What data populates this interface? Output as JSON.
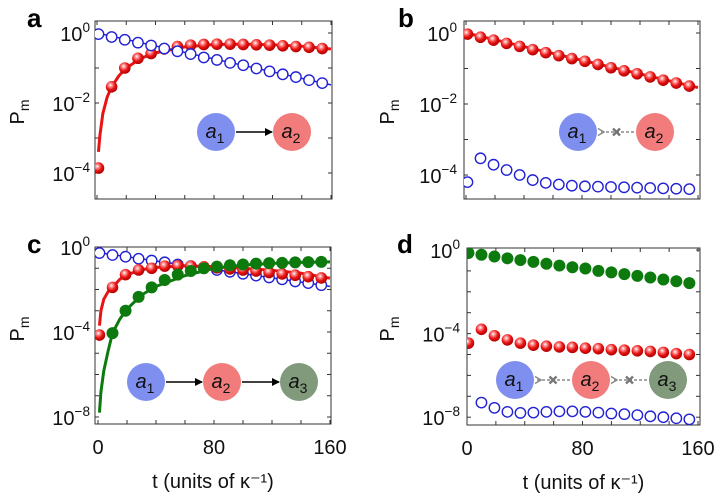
{
  "colors": {
    "red_marker": "#e81414",
    "blue_marker": "#2222d4",
    "green_marker": "#0c7a0c",
    "node_a1": "#7f8ff0",
    "node_a2": "#f27c7c",
    "node_a3": "#819a7c",
    "arrow_blocked": "#8a8a8a"
  },
  "chart_data": [
    {
      "panel": "a",
      "type": "scatter+line",
      "ylabel": "Pm",
      "yscale": "log",
      "ylim": [
        2e-05,
        2.3
      ],
      "xlim": [
        0,
        160
      ],
      "yticks": [
        "10^0",
        "10^-2",
        "10^-4"
      ],
      "xticks": [],
      "diagram": {
        "nodes": [
          "a1",
          "a2"
        ],
        "links": [
          {
            "from": "a1",
            "to": "a2",
            "style": "solid"
          }
        ]
      },
      "series": [
        {
          "color": "red",
          "marker": "sphere",
          "t": [
            1,
            10,
            19,
            28,
            37,
            46,
            55,
            64,
            73,
            82,
            91,
            100,
            109,
            118,
            127,
            136,
            145,
            154
          ],
          "values": [
            0.000138,
            0.029,
            0.1,
            0.19,
            0.26,
            0.35,
            0.41,
            0.45,
            0.47,
            0.48,
            0.48,
            0.47,
            0.46,
            0.45,
            0.43,
            0.41,
            0.39,
            0.36
          ],
          "line": {
            "t": [
              1,
              2,
              4,
              7,
              10,
              15,
              20,
              30,
              40,
              60,
              80,
              100,
              120,
              140,
              160
            ],
            "values": [
              0.0004,
              0.0012,
              0.005,
              0.015,
              0.029,
              0.06,
              0.1,
              0.19,
              0.27,
              0.4,
              0.47,
              0.48,
              0.46,
              0.42,
              0.35
            ]
          }
        },
        {
          "color": "blue",
          "marker": "open-circle",
          "t": [
            1,
            10,
            19,
            28,
            37,
            46,
            55,
            64,
            73,
            82,
            91,
            100,
            109,
            118,
            127,
            136,
            145,
            154
          ],
          "values": [
            0.93,
            0.77,
            0.64,
            0.53,
            0.44,
            0.36,
            0.3,
            0.25,
            0.2,
            0.17,
            0.14,
            0.12,
            0.097,
            0.08,
            0.066,
            0.055,
            0.045,
            0.037
          ],
          "line": {
            "t": [
              0,
              160
            ],
            "values": [
              1.0,
              0.033
            ]
          }
        }
      ]
    },
    {
      "panel": "b",
      "type": "scatter+line",
      "ylabel": "Pm",
      "yscale": "log",
      "ylim": [
        2e-05,
        2.3
      ],
      "xlim": [
        0,
        160
      ],
      "yticks": [
        "10^0",
        "10^-2",
        "10^-4"
      ],
      "xticks": [],
      "diagram": {
        "nodes": [
          "a1",
          "a2"
        ],
        "links": [
          {
            "from": "a2",
            "to": "a1",
            "style": "dashed-blocked"
          }
        ]
      },
      "series": [
        {
          "color": "red",
          "marker": "sphere",
          "t": [
            1,
            10,
            19,
            28,
            37,
            46,
            55,
            64,
            73,
            82,
            91,
            100,
            109,
            118,
            127,
            136,
            145,
            154
          ],
          "values": [
            0.93,
            0.76,
            0.63,
            0.51,
            0.42,
            0.34,
            0.28,
            0.23,
            0.19,
            0.16,
            0.13,
            0.105,
            0.086,
            0.071,
            0.058,
            0.047,
            0.039,
            0.032
          ],
          "line": {
            "t": [
              0,
              160
            ],
            "values": [
              1.0,
              0.029
            ]
          }
        },
        {
          "color": "blue",
          "marker": "open-circle",
          "t": [
            1,
            10,
            19,
            28,
            37,
            46,
            55,
            64,
            73,
            82,
            91,
            100,
            109,
            118,
            127,
            136,
            145,
            154
          ],
          "values": [
            6.3e-05,
            0.000295,
            0.000195,
            0.000138,
            0.0001,
            7.2e-05,
            6e-05,
            5.4e-05,
            5e-05,
            4.8e-05,
            4.7e-05,
            4.6e-05,
            4.5e-05,
            4.4e-05,
            4.3e-05,
            4.2e-05,
            4.1e-05,
            4e-05
          ]
        }
      ]
    },
    {
      "panel": "c",
      "type": "scatter+line",
      "ylabel": "Pm",
      "xlabel": "t (units of κ⁻¹)",
      "yscale": "log",
      "ylim": [
        5e-09,
        1
      ],
      "xlim": [
        0,
        160
      ],
      "yticks": [
        "10^0",
        "10^-4",
        "10^-8"
      ],
      "xticks": [
        "0",
        "80",
        "160"
      ],
      "diagram": {
        "nodes": [
          "a1",
          "a2",
          "a3"
        ],
        "links": [
          {
            "from": "a1",
            "to": "a2",
            "style": "solid"
          },
          {
            "from": "a2",
            "to": "a3",
            "style": "solid"
          }
        ]
      },
      "series": [
        {
          "color": "blue",
          "marker": "open-circle",
          "t": [
            1,
            10,
            19,
            28,
            37,
            46,
            55,
            64,
            73,
            82,
            91,
            100,
            109,
            118,
            127,
            136,
            145,
            154
          ],
          "values": [
            0.52,
            0.42,
            0.35,
            0.28,
            0.23,
            0.19,
            0.15,
            0.125,
            0.1,
            0.083,
            0.068,
            0.055,
            0.045,
            0.037,
            0.03,
            0.024,
            0.02,
            0.016
          ],
          "line": {
            "t": [
              0,
              160
            ],
            "values": [
              0.55,
              0.014
            ]
          }
        },
        {
          "color": "red",
          "marker": "sphere",
          "t": [
            1,
            10,
            19,
            28,
            37,
            46,
            55,
            64,
            73,
            82,
            91,
            100,
            109,
            118,
            127,
            136,
            145,
            154
          ],
          "values": [
            7.2e-05,
            0.0126,
            0.05,
            0.083,
            0.1,
            0.126,
            0.13,
            0.126,
            0.117,
            0.105,
            0.093,
            0.083,
            0.074,
            0.063,
            0.054,
            0.047,
            0.04,
            0.035
          ],
          "line": {
            "t": [
              1,
              2,
              4,
              7,
              10,
              15,
              20,
              30,
              40,
              60,
              80,
              100,
              120,
              140,
              160
            ],
            "values": [
              0.0002,
              0.001,
              0.0035,
              0.008,
              0.0126,
              0.03,
              0.05,
              0.085,
              0.11,
              0.13,
              0.12,
              0.1,
              0.08,
              0.058,
              0.034
            ]
          }
        },
        {
          "color": "green",
          "marker": "filled-circle",
          "t": [
            10,
            19,
            28,
            37,
            46,
            55,
            64,
            73,
            82,
            91,
            100,
            109,
            118,
            127,
            136,
            145,
            154
          ],
          "values": [
            8.9e-05,
            0.001,
            0.0045,
            0.0126,
            0.028,
            0.05,
            0.074,
            0.1,
            0.12,
            0.138,
            0.15,
            0.166,
            0.174,
            0.18,
            0.19,
            0.195,
            0.2
          ],
          "line": {
            "t": [
              1,
              2,
              4,
              7,
              10,
              15,
              20,
              30,
              40,
              60,
              80,
              100,
              120,
              140,
              160
            ],
            "values": [
              1.6e-08,
              1.5e-07,
              1.5e-06,
              1.3e-05,
              8.9e-05,
              0.0004,
              0.0012,
              0.0055,
              0.014,
              0.045,
              0.1,
              0.14,
              0.17,
              0.19,
              0.2
            ]
          }
        }
      ]
    },
    {
      "panel": "d",
      "type": "scatter",
      "ylabel": "Pm",
      "xlabel": "t (units of κ⁻¹)",
      "yscale": "log",
      "ylim": [
        4e-09,
        1.1
      ],
      "xlim": [
        0,
        160
      ],
      "yticks": [
        "10^0",
        "10^-4",
        "10^-8"
      ],
      "xticks": [
        "0",
        "80",
        "160"
      ],
      "diagram": {
        "nodes": [
          "a1",
          "a2",
          "a3"
        ],
        "links": [
          {
            "from": "a2",
            "to": "a1",
            "style": "dashed-blocked"
          },
          {
            "from": "a3",
            "to": "a2",
            "style": "dashed-blocked"
          }
        ]
      },
      "series": [
        {
          "color": "green",
          "marker": "filled-circle",
          "t": [
            1,
            10,
            19,
            28,
            37,
            46,
            55,
            64,
            73,
            82,
            91,
            100,
            109,
            118,
            127,
            136,
            145,
            154
          ],
          "values": [
            0.72,
            0.59,
            0.49,
            0.4,
            0.33,
            0.27,
            0.22,
            0.18,
            0.15,
            0.13,
            0.1,
            0.085,
            0.07,
            0.058,
            0.048,
            0.039,
            0.032,
            0.026
          ]
        },
        {
          "color": "red",
          "marker": "sphere",
          "t": [
            1,
            10,
            19,
            28,
            37,
            46,
            55,
            64,
            73,
            82,
            91,
            100,
            109,
            118,
            127,
            136,
            145,
            154
          ],
          "values": [
            3.5e-05,
            0.00016,
            7.9e-05,
            5e-05,
            3.5e-05,
            2.8e-05,
            2.5e-05,
            2.3e-05,
            2.2e-05,
            2e-05,
            1.9e-05,
            1.7e-05,
            1.6e-05,
            1.5e-05,
            1.4e-05,
            1.26e-05,
            1.1e-05,
            1e-05
          ]
        },
        {
          "color": "blue",
          "marker": "open-circle",
          "t": [
            10,
            19,
            28,
            37,
            46,
            55,
            64,
            73,
            82,
            91,
            100,
            109,
            118,
            127,
            136,
            145,
            154
          ],
          "values": [
            5e-08,
            2.8e-08,
            1.8e-08,
            1.6e-08,
            1.66e-08,
            1.8e-08,
            1.9e-08,
            1.9e-08,
            1.8e-08,
            1.66e-08,
            1.5e-08,
            1.4e-08,
            1.26e-08,
            1.1e-08,
            1e-08,
            8.9e-09,
            7.9e-09
          ]
        }
      ]
    }
  ]
}
